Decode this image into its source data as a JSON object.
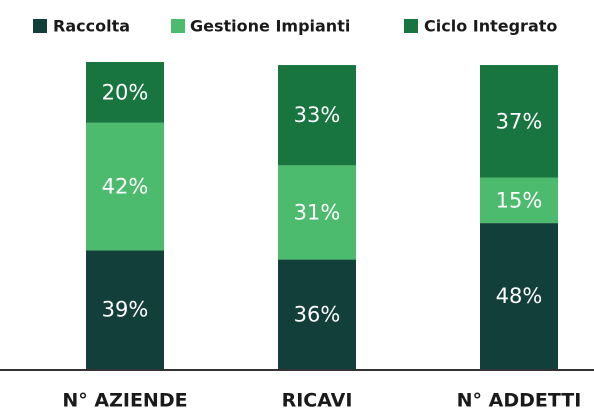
{
  "chart_data": {
    "type": "stacked_bar",
    "categories": [
      "N° AZIENDE",
      "RICAVI",
      "N° ADDETTI"
    ],
    "series": [
      {
        "name": "Raccolta",
        "color": "#133f3a",
        "values": [
          39,
          36,
          48
        ],
        "value_labels": [
          "39%",
          "36%",
          "48%"
        ]
      },
      {
        "name": "Gestione Impianti",
        "color": "#4dbb6d",
        "values": [
          42,
          31,
          15
        ],
        "value_labels": [
          "42%",
          "31%",
          "15%"
        ]
      },
      {
        "name": "Ciclo Integrato",
        "color": "#187540",
        "values": [
          20,
          33,
          37
        ],
        "value_labels": [
          "20%",
          "33%",
          "37%"
        ]
      }
    ],
    "legend": "top"
  }
}
